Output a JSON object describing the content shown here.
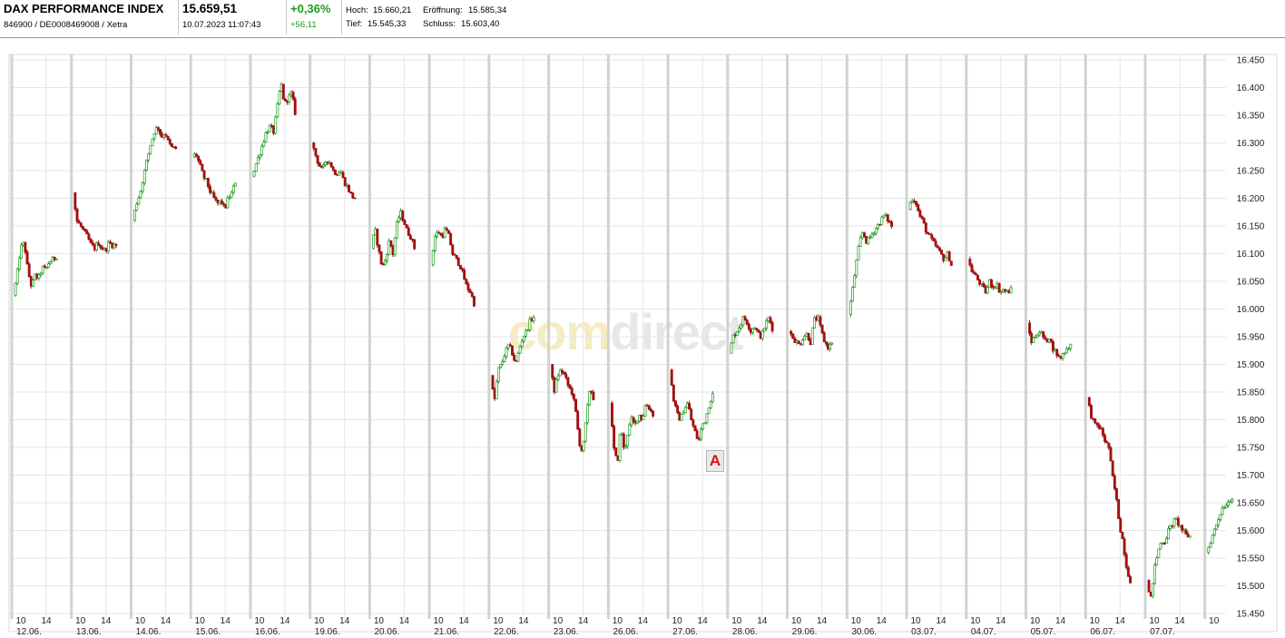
{
  "header": {
    "name": "DAX PERFORMANCE INDEX",
    "ids": "846900 / DE0008469008 / Xetra",
    "price": "15.659,51",
    "datetime": "10.07.2023 11:07:43",
    "change_pct": "+0,36%",
    "change_abs": "+56,11",
    "high_label": "Hoch:",
    "high_value": "15.660,21",
    "open_label": "Eröffnung:",
    "open_value": "15.585,34",
    "low_label": "Tief:",
    "low_value": "15.545,33",
    "close_label": "Schluss:",
    "close_value": "15.603,40"
  },
  "watermark": {
    "part1": "com",
    "part2": "direct"
  },
  "marker_label": "A",
  "colors": {
    "up": "#1e9a1e",
    "down": "#a01010",
    "grid": "#e6e6e6",
    "session_sep": "#d2d2d2"
  },
  "chart_data": {
    "type": "candlestick",
    "ylim": [
      15450,
      16450
    ],
    "yticks": [
      "16.450",
      "16.400",
      "16.350",
      "16.300",
      "16.250",
      "16.200",
      "16.150",
      "16.100",
      "16.050",
      "16.000",
      "15.950",
      "15.900",
      "15.850",
      "15.800",
      "15.750",
      "15.700",
      "15.650",
      "15.600",
      "15.550",
      "15.500",
      "15.450"
    ],
    "days": [
      "12.06.",
      "13.06.",
      "14.06.",
      "15.06.",
      "16.06.",
      "19.06.",
      "20.06.",
      "21.06.",
      "22.06.",
      "23.06.",
      "26.06.",
      "27.06.",
      "28.06.",
      "29.06.",
      "30.06.",
      "03.07.",
      "04.07.",
      "05.07.",
      "06.07.",
      "07.07.",
      "10.07."
    ],
    "hour_labels": [
      "10",
      "14"
    ],
    "series": [
      {
        "day": "12.06.",
        "points": [
          [
            0,
            16025
          ],
          [
            0.08,
            16060
          ],
          [
            0.16,
            16110
          ],
          [
            0.25,
            16120
          ],
          [
            0.33,
            16070
          ],
          [
            0.42,
            16040
          ],
          [
            0.5,
            16060
          ],
          [
            0.58,
            16055
          ],
          [
            0.67,
            16075
          ],
          [
            0.75,
            16070
          ],
          [
            0.83,
            16085
          ],
          [
            0.92,
            16090
          ],
          [
            1,
            16095
          ]
        ]
      },
      {
        "day": "13.06.",
        "points": [
          [
            0,
            16210
          ],
          [
            0.08,
            16160
          ],
          [
            0.17,
            16150
          ],
          [
            0.25,
            16140
          ],
          [
            0.33,
            16130
          ],
          [
            0.42,
            16115
          ],
          [
            0.5,
            16110
          ],
          [
            0.58,
            16120
          ],
          [
            0.67,
            16110
          ],
          [
            0.75,
            16105
          ],
          [
            0.83,
            16120
          ],
          [
            0.92,
            16115
          ],
          [
            1,
            16115
          ]
        ]
      },
      {
        "day": "14.06.",
        "points": [
          [
            0,
            16160
          ],
          [
            0.08,
            16190
          ],
          [
            0.17,
            16210
          ],
          [
            0.25,
            16240
          ],
          [
            0.33,
            16270
          ],
          [
            0.42,
            16300
          ],
          [
            0.5,
            16320
          ],
          [
            0.58,
            16330
          ],
          [
            0.67,
            16310
          ],
          [
            0.75,
            16320
          ],
          [
            0.83,
            16300
          ],
          [
            0.92,
            16290
          ],
          [
            1,
            16290
          ]
        ]
      },
      {
        "day": "15.06.",
        "points": [
          [
            0,
            16275
          ],
          [
            0.08,
            16280
          ],
          [
            0.17,
            16260
          ],
          [
            0.25,
            16240
          ],
          [
            0.33,
            16230
          ],
          [
            0.42,
            16210
          ],
          [
            0.5,
            16200
          ],
          [
            0.58,
            16190
          ],
          [
            0.67,
            16195
          ],
          [
            0.75,
            16180
          ],
          [
            0.83,
            16200
          ],
          [
            0.92,
            16210
          ],
          [
            1,
            16230
          ]
        ]
      },
      {
        "day": "16.06.",
        "points": [
          [
            0,
            16240
          ],
          [
            0.08,
            16260
          ],
          [
            0.17,
            16280
          ],
          [
            0.25,
            16300
          ],
          [
            0.33,
            16320
          ],
          [
            0.42,
            16330
          ],
          [
            0.5,
            16320
          ],
          [
            0.58,
            16360
          ],
          [
            0.67,
            16410
          ],
          [
            0.75,
            16370
          ],
          [
            0.83,
            16380
          ],
          [
            0.92,
            16390
          ],
          [
            1,
            16355
          ]
        ]
      },
      {
        "day": "19.06.",
        "points": [
          [
            0,
            16300
          ],
          [
            0.08,
            16280
          ],
          [
            0.17,
            16260
          ],
          [
            0.25,
            16250
          ],
          [
            0.33,
            16270
          ],
          [
            0.42,
            16265
          ],
          [
            0.5,
            16250
          ],
          [
            0.58,
            16245
          ],
          [
            0.67,
            16250
          ],
          [
            0.75,
            16230
          ],
          [
            0.83,
            16220
          ],
          [
            0.92,
            16205
          ],
          [
            1,
            16200
          ]
        ]
      },
      {
        "day": "20.06.",
        "points": [
          [
            0,
            16110
          ],
          [
            0.08,
            16145
          ],
          [
            0.17,
            16105
          ],
          [
            0.25,
            16075
          ],
          [
            0.33,
            16090
          ],
          [
            0.42,
            16125
          ],
          [
            0.5,
            16100
          ],
          [
            0.58,
            16150
          ],
          [
            0.67,
            16175
          ],
          [
            0.75,
            16160
          ],
          [
            0.83,
            16140
          ],
          [
            0.92,
            16130
          ],
          [
            1,
            16110
          ]
        ]
      },
      {
        "day": "21.06.",
        "points": [
          [
            0,
            16080
          ],
          [
            0.08,
            16130
          ],
          [
            0.17,
            16140
          ],
          [
            0.25,
            16130
          ],
          [
            0.33,
            16145
          ],
          [
            0.42,
            16130
          ],
          [
            0.5,
            16100
          ],
          [
            0.58,
            16090
          ],
          [
            0.67,
            16080
          ],
          [
            0.75,
            16060
          ],
          [
            0.83,
            16040
          ],
          [
            0.92,
            16030
          ],
          [
            1,
            16010
          ]
        ]
      },
      {
        "day": "22.06.",
        "points": [
          [
            0,
            15880
          ],
          [
            0.08,
            15830
          ],
          [
            0.17,
            15890
          ],
          [
            0.25,
            15900
          ],
          [
            0.33,
            15920
          ],
          [
            0.42,
            15935
          ],
          [
            0.5,
            15920
          ],
          [
            0.58,
            15900
          ],
          [
            0.67,
            15930
          ],
          [
            0.75,
            15950
          ],
          [
            0.83,
            15960
          ],
          [
            0.92,
            15980
          ],
          [
            1,
            15985
          ]
        ]
      },
      {
        "day": "23.06.",
        "points": [
          [
            0,
            15900
          ],
          [
            0.08,
            15850
          ],
          [
            0.17,
            15880
          ],
          [
            0.25,
            15890
          ],
          [
            0.33,
            15880
          ],
          [
            0.42,
            15860
          ],
          [
            0.5,
            15850
          ],
          [
            0.58,
            15820
          ],
          [
            0.67,
            15760
          ],
          [
            0.75,
            15740
          ],
          [
            0.83,
            15800
          ],
          [
            0.92,
            15860
          ],
          [
            1,
            15840
          ]
        ]
      },
      {
        "day": "26.06.",
        "points": [
          [
            0,
            15830
          ],
          [
            0.08,
            15750
          ],
          [
            0.17,
            15720
          ],
          [
            0.25,
            15790
          ],
          [
            0.33,
            15740
          ],
          [
            0.42,
            15780
          ],
          [
            0.5,
            15800
          ],
          [
            0.58,
            15790
          ],
          [
            0.67,
            15810
          ],
          [
            0.75,
            15800
          ],
          [
            0.83,
            15830
          ],
          [
            0.92,
            15820
          ],
          [
            1,
            15810
          ]
        ]
      },
      {
        "day": "27.06.",
        "points": [
          [
            0,
            15890
          ],
          [
            0.08,
            15840
          ],
          [
            0.17,
            15810
          ],
          [
            0.25,
            15800
          ],
          [
            0.33,
            15820
          ],
          [
            0.42,
            15830
          ],
          [
            0.5,
            15800
          ],
          [
            0.58,
            15780
          ],
          [
            0.67,
            15760
          ],
          [
            0.75,
            15790
          ],
          [
            0.83,
            15800
          ],
          [
            0.92,
            15830
          ],
          [
            1,
            15845
          ]
        ]
      },
      {
        "day": "28.06.",
        "points": [
          [
            0,
            15920
          ],
          [
            0.08,
            15950
          ],
          [
            0.17,
            15960
          ],
          [
            0.25,
            15970
          ],
          [
            0.33,
            15985
          ],
          [
            0.42,
            15975
          ],
          [
            0.5,
            15960
          ],
          [
            0.58,
            15970
          ],
          [
            0.67,
            15955
          ],
          [
            0.75,
            15950
          ],
          [
            0.83,
            15970
          ],
          [
            0.92,
            15985
          ],
          [
            1,
            15965
          ]
        ]
      },
      {
        "day": "29.06.",
        "points": [
          [
            0,
            15960
          ],
          [
            0.08,
            15950
          ],
          [
            0.17,
            15940
          ],
          [
            0.25,
            15935
          ],
          [
            0.33,
            15950
          ],
          [
            0.42,
            15955
          ],
          [
            0.5,
            15940
          ],
          [
            0.58,
            15980
          ],
          [
            0.67,
            15985
          ],
          [
            0.75,
            15960
          ],
          [
            0.83,
            15940
          ],
          [
            0.92,
            15930
          ],
          [
            1,
            15940
          ]
        ]
      },
      {
        "day": "30.06.",
        "points": [
          [
            0,
            15990
          ],
          [
            0.08,
            16030
          ],
          [
            0.17,
            16080
          ],
          [
            0.25,
            16120
          ],
          [
            0.33,
            16140
          ],
          [
            0.42,
            16120
          ],
          [
            0.5,
            16130
          ],
          [
            0.58,
            16140
          ],
          [
            0.67,
            16150
          ],
          [
            0.75,
            16160
          ],
          [
            0.83,
            16170
          ],
          [
            0.92,
            16160
          ],
          [
            1,
            16150
          ]
        ]
      },
      {
        "day": "03.07.",
        "points": [
          [
            0,
            16180
          ],
          [
            0.08,
            16200
          ],
          [
            0.17,
            16195
          ],
          [
            0.25,
            16170
          ],
          [
            0.33,
            16160
          ],
          [
            0.42,
            16140
          ],
          [
            0.5,
            16130
          ],
          [
            0.58,
            16120
          ],
          [
            0.67,
            16110
          ],
          [
            0.75,
            16100
          ],
          [
            0.83,
            16090
          ],
          [
            0.92,
            16100
          ],
          [
            1,
            16080
          ]
        ]
      },
      {
        "day": "04.07.",
        "points": [
          [
            0,
            16090
          ],
          [
            0.08,
            16070
          ],
          [
            0.17,
            16060
          ],
          [
            0.25,
            16050
          ],
          [
            0.33,
            16040
          ],
          [
            0.42,
            16030
          ],
          [
            0.5,
            16050
          ],
          [
            0.58,
            16040
          ],
          [
            0.67,
            16045
          ],
          [
            0.75,
            16030
          ],
          [
            0.83,
            16035
          ],
          [
            0.92,
            16030
          ],
          [
            1,
            16035
          ]
        ]
      },
      {
        "day": "05.07.",
        "points": [
          [
            0,
            15975
          ],
          [
            0.08,
            15940
          ],
          [
            0.17,
            15950
          ],
          [
            0.25,
            15960
          ],
          [
            0.33,
            15955
          ],
          [
            0.42,
            15940
          ],
          [
            0.5,
            15950
          ],
          [
            0.58,
            15930
          ],
          [
            0.67,
            15920
          ],
          [
            0.75,
            15910
          ],
          [
            0.83,
            15920
          ],
          [
            0.92,
            15930
          ],
          [
            1,
            15935
          ]
        ]
      },
      {
        "day": "06.07.",
        "points": [
          [
            0,
            15840
          ],
          [
            0.08,
            15810
          ],
          [
            0.17,
            15790
          ],
          [
            0.25,
            15790
          ],
          [
            0.33,
            15780
          ],
          [
            0.42,
            15760
          ],
          [
            0.5,
            15750
          ],
          [
            0.58,
            15700
          ],
          [
            0.67,
            15660
          ],
          [
            0.75,
            15610
          ],
          [
            0.83,
            15580
          ],
          [
            0.92,
            15530
          ],
          [
            1,
            15510
          ]
        ]
      },
      {
        "day": "07.07.",
        "points": [
          [
            0,
            15510
          ],
          [
            0.08,
            15470
          ],
          [
            0.17,
            15530
          ],
          [
            0.25,
            15560
          ],
          [
            0.33,
            15580
          ],
          [
            0.42,
            15580
          ],
          [
            0.5,
            15600
          ],
          [
            0.58,
            15610
          ],
          [
            0.67,
            15620
          ],
          [
            0.75,
            15610
          ],
          [
            0.83,
            15600
          ],
          [
            0.92,
            15590
          ],
          [
            1,
            15590
          ]
        ]
      },
      {
        "day": "10.07.",
        "points": [
          [
            0,
            15560
          ],
          [
            0.3,
            15600
          ],
          [
            0.6,
            15640
          ],
          [
            1,
            15660
          ]
        ]
      }
    ]
  }
}
